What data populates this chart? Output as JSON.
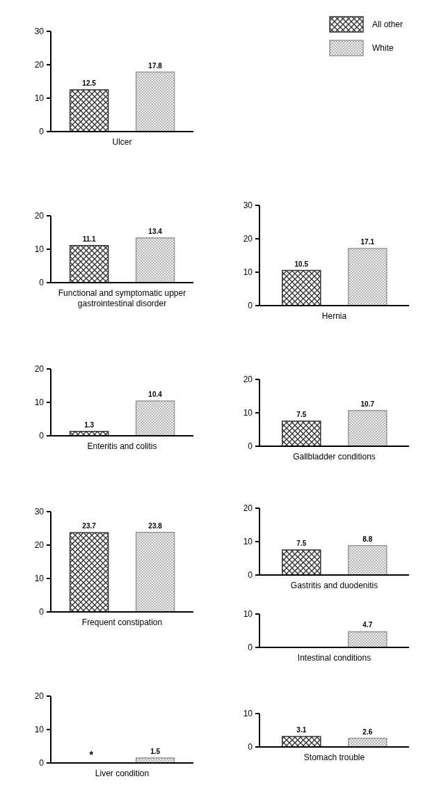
{
  "chart_data": [
    {
      "type": "bar",
      "categories": [
        null
      ],
      "xlabel": "Ulcer",
      "ylim": [
        0,
        30
      ],
      "yticks": [
        0,
        10,
        20,
        30
      ],
      "data_labels": true,
      "legend": "top right",
      "series": [
        {
          "name": "All other",
          "color": "#333333",
          "values": [
            12.5
          ]
        },
        {
          "name": "White",
          "color": "#999999",
          "values": [
            17.8
          ]
        }
      ]
    },
    {
      "type": "bar",
      "categories": [
        null
      ],
      "xlabel": "Functional and symptomatic upper gastrointestinal disorder",
      "ylim": [
        0,
        20
      ],
      "yticks": [
        0,
        10,
        20
      ],
      "data_labels": true,
      "series": [
        {
          "color": "#333333",
          "values": [
            11.1
          ]
        },
        {
          "color": "#999999",
          "values": [
            13.4
          ]
        }
      ]
    },
    {
      "type": "bar",
      "categories": [
        null
      ],
      "xlabel": "Hernia",
      "ylim": [
        0,
        30
      ],
      "yticks": [
        0,
        10,
        20,
        30
      ],
      "data_labels": true,
      "series": [
        {
          "color": "#333333",
          "values": [
            10.5
          ]
        },
        {
          "color": "#999999",
          "values": [
            17.1
          ]
        }
      ]
    },
    {
      "type": "bar",
      "categories": [
        null
      ],
      "xlabel": "Enteritis and colitis",
      "ylim": [
        0,
        20
      ],
      "yticks": [
        0,
        10,
        20
      ],
      "data_labels": true,
      "series": [
        {
          "color": "#333333",
          "values": [
            1.3
          ]
        },
        {
          "color": "#999999",
          "values": [
            10.4
          ]
        }
      ]
    },
    {
      "type": "bar",
      "categories": [
        null
      ],
      "xlabel": "Gallbladder conditions",
      "ylim": [
        0,
        20
      ],
      "yticks": [
        0,
        10,
        20
      ],
      "data_labels": true,
      "series": [
        {
          "color": "#333333",
          "values": [
            7.5
          ]
        },
        {
          "color": "#999999",
          "values": [
            10.7
          ]
        }
      ]
    },
    {
      "type": "bar",
      "categories": [
        null
      ],
      "xlabel": "Frequent constipation",
      "ylim": [
        0,
        30
      ],
      "yticks": [
        0,
        10,
        20,
        30
      ],
      "data_labels": true,
      "series": [
        {
          "color": "#333333",
          "values": [
            23.7
          ]
        },
        {
          "color": "#999999",
          "values": [
            23.8
          ]
        }
      ]
    },
    {
      "type": "bar",
      "categories": [
        null
      ],
      "xlabel": "Gastritis and duodenitis",
      "ylim": [
        0,
        20
      ],
      "yticks": [
        0,
        10,
        20
      ],
      "data_labels": true,
      "series": [
        {
          "color": "#333333",
          "values": [
            7.5
          ]
        },
        {
          "color": "#999999",
          "values": [
            8.8
          ]
        }
      ]
    },
    {
      "type": "bar",
      "categories": [
        null
      ],
      "xlabel": "Intestinal conditions",
      "ylim": [
        0,
        10
      ],
      "yticks": [
        0,
        10
      ],
      "data_labels": true,
      "series": [
        {
          "color": "#333333",
          "values": [
            null
          ]
        },
        {
          "color": "#999999",
          "values": [
            4.7
          ]
        }
      ]
    },
    {
      "type": "bar",
      "categories": [
        null
      ],
      "xlabel": "Liver condition",
      "ylim": [
        0,
        20
      ],
      "yticks": [
        0,
        10,
        20
      ],
      "data_labels": true,
      "annotations": [
        "*"
      ],
      "series": [
        {
          "color": "#333333",
          "values": [
            null
          ]
        },
        {
          "color": "#999999",
          "values": [
            1.5
          ]
        }
      ]
    },
    {
      "type": "bar",
      "categories": [
        null
      ],
      "xlabel": "Stomach trouble",
      "ylim": [
        0,
        10
      ],
      "yticks": [
        0,
        10
      ],
      "data_labels": true,
      "series": [
        {
          "color": "#333333",
          "values": [
            3.1
          ]
        },
        {
          "color": "#999999",
          "values": [
            2.6
          ]
        }
      ]
    }
  ]
}
